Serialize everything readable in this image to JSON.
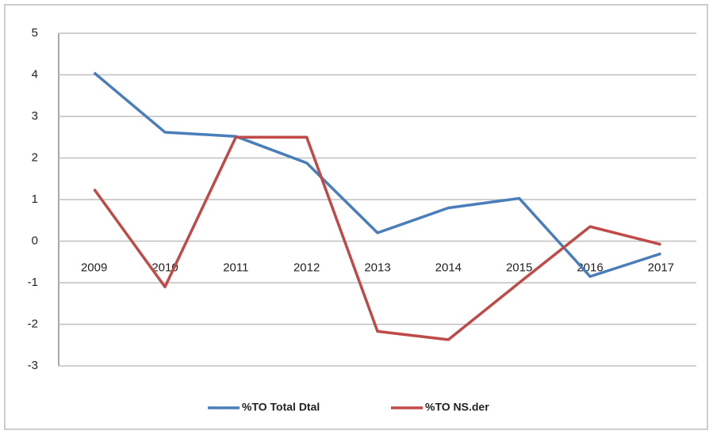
{
  "chart_data": {
    "type": "line",
    "categories": [
      "2009",
      "2010",
      "2011",
      "2012",
      "2013",
      "2014",
      "2015",
      "2016",
      "2017"
    ],
    "series": [
      {
        "name": "%TO Total Dtal",
        "color": "#4a7ebb",
        "values": [
          4.05,
          2.62,
          2.52,
          1.88,
          0.2,
          0.8,
          1.03,
          -0.85,
          -0.3
        ]
      },
      {
        "name": "%TO NS.der",
        "color": "#be4b48",
        "values": [
          1.25,
          -1.1,
          2.5,
          2.5,
          -2.17,
          -2.37,
          -1.0,
          0.35,
          -0.08
        ]
      }
    ],
    "ylim": [
      -3,
      5
    ],
    "yticks": [
      -3,
      -2,
      -1,
      0,
      1,
      2,
      3,
      4,
      5
    ],
    "grid": true,
    "legend": "bottom"
  }
}
